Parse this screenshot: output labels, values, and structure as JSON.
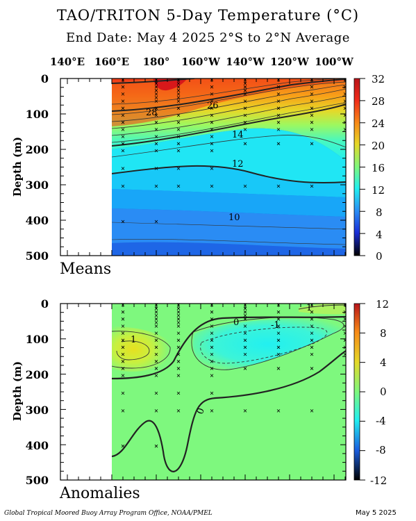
{
  "title": "TAO/TRITON 5-Day Temperature (°C)",
  "subtitle": "End Date: May 4 2025   2°S to 2°N Average",
  "longitude_labels": [
    "140°E",
    "160°E",
    "180°",
    "160°W",
    "140°W",
    "120°W",
    "100°W"
  ],
  "credit": "Global Tropical Moored Buoy Array Program Office, NOAA/PMEL",
  "date_stamp": "May  5 2025",
  "colors": {
    "warm": "#e8241a",
    "orange": "#f88a18",
    "yellow": "#e6d828",
    "green": "#7ef87e",
    "cyan": "#22f0f0",
    "light_blue": "#18c8f8",
    "blue": "#2a8cf4",
    "deep_blue": "#1a5ee0",
    "navy": "#10107a",
    "black": "#000000"
  },
  "chart_data": [
    {
      "type": "heatmap",
      "panel_label": "Means",
      "ylabel": "Depth (m)",
      "y_ticks": [
        "0",
        "100",
        "200",
        "300",
        "400",
        "500"
      ],
      "ylim": [
        500,
        0
      ],
      "x_ticks": [
        "140°E",
        "160°E",
        "180°",
        "160°W",
        "140°W",
        "120°W",
        "100°W"
      ],
      "colorbar": {
        "ticks": [
          "32",
          "28",
          "24",
          "20",
          "16",
          "12",
          "8",
          "4",
          "0"
        ],
        "range": [
          0,
          32
        ]
      },
      "contour_labels": [
        {
          "text": "28",
          "lon": 171,
          "depth": 95
        },
        {
          "text": "26",
          "lon": 207,
          "depth": 75
        },
        {
          "text": "14",
          "lon": 223,
          "depth": 160
        },
        {
          "text": "12",
          "lon": 226,
          "depth": 240
        },
        {
          "text": "10",
          "lon": 226,
          "depth": 390
        }
      ],
      "data_coverage": "no data west of 160°E"
    },
    {
      "type": "heatmap",
      "panel_label": "Anomalies",
      "ylabel": "Depth (m)",
      "y_ticks": [
        "0",
        "100",
        "200",
        "300",
        "400",
        "500"
      ],
      "ylim": [
        500,
        0
      ],
      "x_ticks": [
        "140°E",
        "160°E",
        "180°",
        "160°W",
        "140°W",
        "120°W",
        "100°W"
      ],
      "colorbar": {
        "ticks": [
          "12",
          "8",
          "4",
          "0",
          "-4",
          "-8",
          "-12"
        ],
        "range": [
          -12,
          12
        ]
      },
      "contour_labels": [
        {
          "text": "1",
          "lon": 170,
          "depth": 100
        },
        {
          "text": "0",
          "lon": 203,
          "depth": 55
        },
        {
          "text": "-1",
          "lon": 234,
          "depth": 60
        },
        {
          "text": "1",
          "lon": 265,
          "depth": 15
        },
        {
          "text": "0",
          "lon": 187,
          "depth": 310
        }
      ],
      "data_coverage": "no data west of 160°E"
    }
  ]
}
